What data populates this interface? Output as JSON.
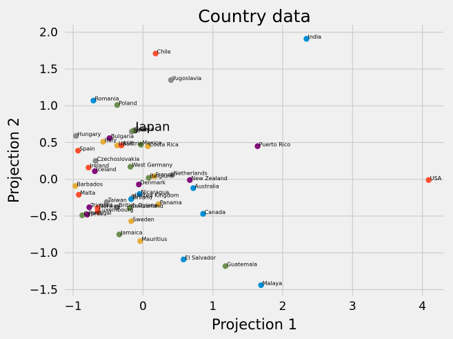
{
  "chart_data": {
    "type": "scatter",
    "title": "Country data",
    "xlabel": "Projection 1",
    "ylabel": "Projection 2",
    "xlim": [
      -1.12,
      4.3
    ],
    "ylim": [
      -1.58,
      2.1
    ],
    "xticks": [
      -1,
      0,
      1,
      2,
      3,
      4
    ],
    "xtick_labels": [
      "−1",
      "0",
      "1",
      "2",
      "3",
      "4"
    ],
    "yticks": [
      -1.5,
      -1.0,
      -0.5,
      0.0,
      0.5,
      1.0,
      1.5,
      2.0
    ],
    "ytick_labels": [
      "−1.5",
      "−1.0",
      "−0.5",
      "0.0",
      "0.5",
      "1.0",
      "1.5",
      "2.0"
    ],
    "grid": true,
    "colors": [
      "#008fd5",
      "#fc4f30",
      "#e5ae38",
      "#6d904f",
      "#8b8b8b",
      "#810f7c"
    ],
    "points": [
      {
        "label": "India",
        "x": 2.34,
        "y": 1.91,
        "c": 0
      },
      {
        "label": "Chile",
        "x": 0.18,
        "y": 1.71,
        "c": 1
      },
      {
        "label": "Yugoslavia",
        "x": 0.4,
        "y": 1.35,
        "c": 4
      },
      {
        "label": "Romania",
        "x": -0.71,
        "y": 1.07,
        "c": 0
      },
      {
        "label": "Poland",
        "x": -0.37,
        "y": 1.01,
        "c": 3
      },
      {
        "label": "Japan",
        "x": -0.16,
        "y": 0.65,
        "c": 4
      },
      {
        "label": "Greece",
        "x": -0.14,
        "y": 0.66,
        "c": 3
      },
      {
        "label": "Hungary",
        "x": -0.96,
        "y": 0.59,
        "c": 4
      },
      {
        "label": "Bulgaria",
        "x": -0.48,
        "y": 0.56,
        "c": 5
      },
      {
        "label": "Italy",
        "x": -0.57,
        "y": 0.51,
        "c": 2
      },
      {
        "label": "USSR",
        "x": -0.37,
        "y": 0.46,
        "c": 2
      },
      {
        "label": "Austria",
        "x": -0.31,
        "y": 0.46,
        "c": 1
      },
      {
        "label": "Mexico",
        "x": -0.03,
        "y": 0.47,
        "c": 3
      },
      {
        "label": "Costa Rica",
        "x": 0.07,
        "y": 0.45,
        "c": 2
      },
      {
        "label": "Puerto Rico",
        "x": 1.64,
        "y": 0.45,
        "c": 5
      },
      {
        "label": "Spain",
        "x": -0.93,
        "y": 0.39,
        "c": 1
      },
      {
        "label": "Czechoslovakia",
        "x": -0.68,
        "y": 0.25,
        "c": 4
      },
      {
        "label": "West Germany",
        "x": -0.18,
        "y": 0.17,
        "c": 3
      },
      {
        "label": "Ireland",
        "x": -0.78,
        "y": 0.16,
        "c": 1
      },
      {
        "label": "Iceland",
        "x": -0.69,
        "y": 0.11,
        "c": 5
      },
      {
        "label": "Netherlands",
        "x": 0.42,
        "y": 0.06,
        "c": 4
      },
      {
        "label": "Belgium",
        "x": 0.08,
        "y": 0.02,
        "c": 3
      },
      {
        "label": "France",
        "x": 0.16,
        "y": 0.04,
        "c": 2
      },
      {
        "label": "New Zealand",
        "x": 0.67,
        "y": -0.01,
        "c": 5
      },
      {
        "label": "USA",
        "x": 4.09,
        "y": -0.01,
        "c": 1
      },
      {
        "label": "Denmark",
        "x": -0.06,
        "y": -0.07,
        "c": 5
      },
      {
        "label": "Barbados",
        "x": -0.97,
        "y": -0.09,
        "c": 2
      },
      {
        "label": "Australia",
        "x": 0.72,
        "y": -0.12,
        "c": 0
      },
      {
        "label": "Malta",
        "x": -0.92,
        "y": -0.21,
        "c": 1
      },
      {
        "label": "Nicaragua",
        "x": -0.05,
        "y": -0.2,
        "c": 0
      },
      {
        "label": "United Kingdom",
        "x": -0.14,
        "y": -0.24,
        "c": 4
      },
      {
        "label": "Finland",
        "x": -0.17,
        "y": -0.27,
        "c": 0
      },
      {
        "label": "Taiwan",
        "x": -0.52,
        "y": -0.31,
        "c": 4
      },
      {
        "label": "Panama",
        "x": 0.22,
        "y": -0.34,
        "c": 2
      },
      {
        "label": "Trinidad",
        "x": -0.77,
        "y": -0.38,
        "c": 5
      },
      {
        "label": "Norway",
        "x": -0.65,
        "y": -0.39,
        "c": 1
      },
      {
        "label": "British Guiana",
        "x": -0.37,
        "y": -0.38,
        "c": 4
      },
      {
        "label": "Switzerland",
        "x": -0.19,
        "y": -0.39,
        "c": 3
      },
      {
        "label": "Luxembourg",
        "x": -0.65,
        "y": -0.44,
        "c": 1
      },
      {
        "label": "Cyprus",
        "x": -0.87,
        "y": -0.49,
        "c": 3
      },
      {
        "label": "Portugal",
        "x": -0.8,
        "y": -0.48,
        "c": 5
      },
      {
        "label": "Canada",
        "x": 0.86,
        "y": -0.47,
        "c": 0
      },
      {
        "label": "Sweden",
        "x": -0.17,
        "y": -0.57,
        "c": 2
      },
      {
        "label": "Jamaica",
        "x": -0.34,
        "y": -0.75,
        "c": 3
      },
      {
        "label": "Mauritius",
        "x": -0.04,
        "y": -0.84,
        "c": 2
      },
      {
        "label": "El Salvador",
        "x": 0.58,
        "y": -1.09,
        "c": 0
      },
      {
        "label": "Guatemala",
        "x": 1.18,
        "y": -1.18,
        "c": 3
      },
      {
        "label": "Malaya",
        "x": 1.69,
        "y": -1.44,
        "c": 0
      }
    ],
    "annotation": {
      "text": "Japan",
      "x": -0.11,
      "y": 0.66
    }
  }
}
